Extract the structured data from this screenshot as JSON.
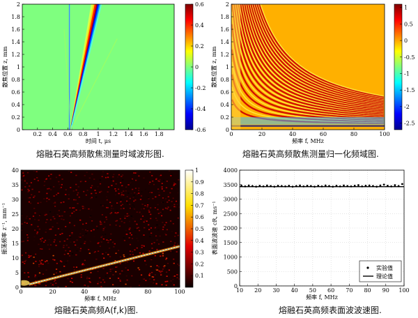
{
  "chart_data": [
    {
      "type": "heatmap",
      "caption": "熔融石英高频散焦测量时域波形图.",
      "xlabel": "时间 t, μs",
      "ylabel": "散焦位置 z, mm",
      "xlim": [
        0,
        2.0
      ],
      "ylim": [
        0,
        2
      ],
      "x_ticks": [
        "0.2",
        "0.4",
        "0.6",
        "0.8",
        "1",
        "1.2",
        "1.4",
        "1.6",
        "1.8"
      ],
      "y_ticks": [
        "0",
        "0.2",
        "0.4",
        "0.6",
        "0.8",
        "1",
        "1.2",
        "1.4",
        "1.6",
        "1.8",
        "2"
      ],
      "colorbar": {
        "ticks": [
          "0.6",
          "0.4",
          "0.2",
          "0",
          "-0.2",
          "-0.4",
          "-0.6"
        ],
        "range": [
          -0.6,
          0.6
        ]
      },
      "colormap": "jet",
      "features": {
        "vertical_line_t": 0.62,
        "wave_start_t": 0.64,
        "wave_end_t": 0.98,
        "wave_start_z": 0,
        "wave_end_z": 2
      }
    },
    {
      "type": "heatmap",
      "caption": "熔融石英高频散焦测量归一化频域图.",
      "xlabel": "频率 f, MHz",
      "ylabel": "散焦位置 z, mm",
      "xlim": [
        0,
        100
      ],
      "ylim": [
        0,
        2
      ],
      "x_ticks": [
        "0",
        "20",
        "40",
        "60",
        "80",
        "100"
      ],
      "y_ticks": [
        "0",
        "0.2",
        "0.4",
        "0.6",
        "0.8",
        "1",
        "1.2",
        "1.4",
        "1.6",
        "1.8",
        "2"
      ],
      "colorbar": {
        "ticks": [
          "1",
          "0.5",
          "0",
          "-0.5",
          "-1",
          "-1.5",
          "-2",
          "-2.5"
        ],
        "range": [
          -2.7,
          1.1
        ]
      },
      "colormap": "jet",
      "fringe_count": 18
    },
    {
      "type": "heatmap",
      "caption": "熔融石英高频A(f,k)图.",
      "xlabel": "频率 f, MHz",
      "ylabel": "振荡频率 z⁻¹, mm⁻¹",
      "xlim": [
        0,
        100
      ],
      "ylim": [
        0,
        40
      ],
      "x_ticks": [
        "0",
        "20",
        "40",
        "60",
        "80",
        "100"
      ],
      "y_ticks": [
        "0",
        "5",
        "10",
        "15",
        "20",
        "25",
        "30",
        "35",
        "40"
      ],
      "colorbar": {
        "ticks": [
          "1",
          "0.9",
          "0.8",
          "0.7",
          "0.6",
          "0.5",
          "0.4",
          "0.3",
          "0.2",
          "0.1"
        ],
        "range": [
          0,
          1
        ]
      },
      "colormap": "hot",
      "ridge": {
        "start": [
          5,
          1
        ],
        "end": [
          100,
          14
        ]
      }
    },
    {
      "type": "scatter",
      "caption": "熔融石英高频表面波波速图.",
      "xlabel": "频率 f, MHz",
      "ylabel": "表面波波速 cR, ms⁻¹",
      "xlim": [
        10,
        100
      ],
      "ylim": [
        0,
        4000
      ],
      "x_ticks": [
        "10",
        "20",
        "30",
        "40",
        "50",
        "60",
        "70",
        "80",
        "90",
        "100"
      ],
      "y_ticks": [
        "0",
        "500",
        "1000",
        "1500",
        "2000",
        "2500",
        "3000",
        "3500",
        "4000"
      ],
      "grid": true,
      "legend": {
        "position": "bottom-right",
        "entries": [
          "实验值",
          "理论值"
        ]
      },
      "series": [
        {
          "name": "实验值",
          "type": "scatter",
          "x": [
            11,
            13,
            15,
            17,
            19,
            21,
            23,
            25,
            27,
            29,
            31,
            33,
            35,
            37,
            39,
            41,
            43,
            45,
            47,
            49,
            51,
            53,
            55,
            57,
            59,
            61,
            63,
            65,
            67,
            69,
            71,
            73,
            75,
            77,
            79,
            81,
            83,
            85,
            87,
            89,
            91,
            93,
            95,
            97,
            99
          ],
          "y": [
            3460,
            3440,
            3470,
            3450,
            3430,
            3460,
            3440,
            3470,
            3450,
            3430,
            3460,
            3450,
            3440,
            3460,
            3430,
            3450,
            3470,
            3440,
            3460,
            3450,
            3430,
            3460,
            3440,
            3470,
            3450,
            3430,
            3460,
            3440,
            3470,
            3450,
            3440,
            3460,
            3480,
            3440,
            3460,
            3470,
            3450,
            3430,
            3470,
            3500,
            3460,
            3440,
            3480,
            3450,
            3520
          ]
        },
        {
          "name": "理论值",
          "type": "line",
          "x": [
            10,
            100
          ],
          "y": [
            3430,
            3430
          ]
        }
      ]
    }
  ]
}
